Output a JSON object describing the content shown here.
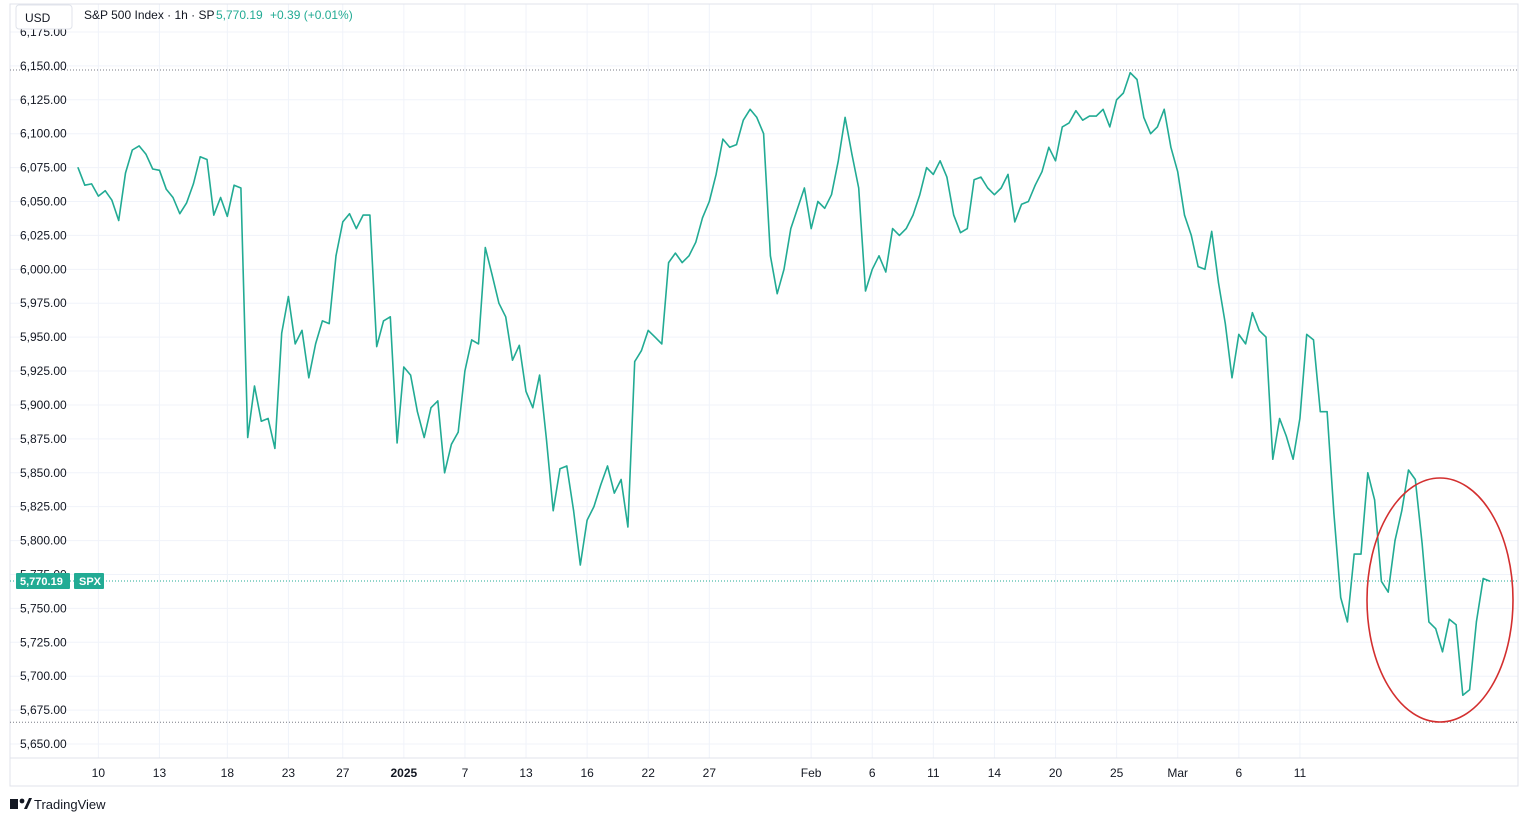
{
  "chart_data": {
    "type": "line",
    "title": "S&P 500 Index · 1h · SP",
    "legend": {
      "last_value": "5,770.19",
      "change": "+0.39 (+0.01%)"
    },
    "currency": "USD",
    "symbol": "SPX",
    "last_price_label": "5,770.19",
    "last_price": 5770.19,
    "ylim": [
      5640,
      6175
    ],
    "y_ticks": [
      5650,
      5675,
      5700,
      5725,
      5750,
      5775,
      5800,
      5825,
      5850,
      5875,
      5900,
      5925,
      5950,
      5975,
      6000,
      6025,
      6050,
      6075,
      6100,
      6125,
      6150,
      6175
    ],
    "y_tick_labels": [
      "5,650.00",
      "5,675.00",
      "5,700.00",
      "5,725.00",
      "5,750.00",
      "5,775.00",
      "5,800.00",
      "5,825.00",
      "5,850.00",
      "5,875.00",
      "5,900.00",
      "5,925.00",
      "5,950.00",
      "5,975.00",
      "6,000.00",
      "6,025.00",
      "6,050.00",
      "6,075.00",
      "6,100.00",
      "6,125.00",
      "6,150.00",
      "6,175.00"
    ],
    "high_line": 6147,
    "low_line": 5666,
    "x_ticks": [
      {
        "label": "10",
        "idx": 3,
        "bold": false
      },
      {
        "label": "13",
        "idx": 12,
        "bold": false
      },
      {
        "label": "18",
        "idx": 22,
        "bold": false
      },
      {
        "label": "23",
        "idx": 31,
        "bold": false
      },
      {
        "label": "27",
        "idx": 39,
        "bold": false
      },
      {
        "label": "2025",
        "idx": 48,
        "bold": true
      },
      {
        "label": "7",
        "idx": 57,
        "bold": false
      },
      {
        "label": "13",
        "idx": 66,
        "bold": false
      },
      {
        "label": "16",
        "idx": 75,
        "bold": false
      },
      {
        "label": "22",
        "idx": 84,
        "bold": false
      },
      {
        "label": "27",
        "idx": 93,
        "bold": false
      },
      {
        "label": "Feb",
        "idx": 108,
        "bold": false
      },
      {
        "label": "6",
        "idx": 117,
        "bold": false
      },
      {
        "label": "11",
        "idx": 126,
        "bold": false
      },
      {
        "label": "14",
        "idx": 135,
        "bold": false
      },
      {
        "label": "20",
        "idx": 144,
        "bold": false
      },
      {
        "label": "25",
        "idx": 153,
        "bold": false
      },
      {
        "label": "Mar",
        "idx": 162,
        "bold": false
      },
      {
        "label": "6",
        "idx": 171,
        "bold": false
      },
      {
        "label": "11",
        "idx": 180,
        "bold": false
      }
    ],
    "values": [
      6075,
      6062,
      6063,
      6054,
      6058,
      6051,
      6036,
      6071,
      6088,
      6091,
      6085,
      6074,
      6073,
      6059,
      6053,
      6041,
      6049,
      6063,
      6083,
      6081,
      6040,
      6053,
      6039,
      6062,
      6060,
      5876,
      5914,
      5888,
      5890,
      5868,
      5953,
      5980,
      5945,
      5955,
      5920,
      5945,
      5962,
      5960,
      6010,
      6035,
      6041,
      6030,
      6040,
      6040,
      5943,
      5962,
      5965,
      5872,
      5928,
      5922,
      5895,
      5876,
      5898,
      5903,
      5850,
      5871,
      5880,
      5925,
      5948,
      5945,
      6016,
      5996,
      5975,
      5965,
      5933,
      5944,
      5910,
      5898,
      5922,
      5875,
      5822,
      5853,
      5855,
      5822,
      5782,
      5815,
      5825,
      5841,
      5855,
      5835,
      5845,
      5810,
      5932,
      5940,
      5955,
      5950,
      5945,
      6005,
      6012,
      6005,
      6010,
      6020,
      6038,
      6050,
      6070,
      6096,
      6090,
      6092,
      6110,
      6118,
      6112,
      6100,
      6010,
      5982,
      6000,
      6030,
      6045,
      6060,
      6030,
      6050,
      6045,
      6055,
      6080,
      6112,
      6085,
      6060,
      5984,
      6000,
      6010,
      5998,
      6030,
      6025,
      6030,
      6040,
      6055,
      6075,
      6070,
      6080,
      6068,
      6040,
      6027,
      6030,
      6066,
      6068,
      6060,
      6055,
      6060,
      6070,
      6035,
      6048,
      6050,
      6062,
      6072,
      6090,
      6080,
      6105,
      6108,
      6117,
      6110,
      6113,
      6113,
      6118,
      6105,
      6125,
      6130,
      6145,
      6140,
      6112,
      6100,
      6105,
      6118,
      6090,
      6072,
      6040,
      6025,
      6002,
      6000,
      6028,
      5990,
      5960,
      5920,
      5952,
      5945,
      5968,
      5955,
      5950,
      5860,
      5890,
      5877,
      5860,
      5890,
      5952,
      5948,
      5895,
      5895,
      5820,
      5758,
      5740,
      5790,
      5790,
      5850,
      5830,
      5770,
      5762,
      5800,
      5822,
      5852,
      5845,
      5798,
      5740,
      5735,
      5718,
      5742,
      5738,
      5686,
      5690,
      5740,
      5772,
      5770
    ]
  },
  "footer": {
    "brand": "TradingView"
  },
  "colors": {
    "line": "#22ab94",
    "badge": "#22ab94",
    "annotation": "#d32f2f",
    "grid": "#f0f3fa",
    "border": "#e0e3eb",
    "dotted": "#787b86",
    "change_text": "#22ab94"
  }
}
